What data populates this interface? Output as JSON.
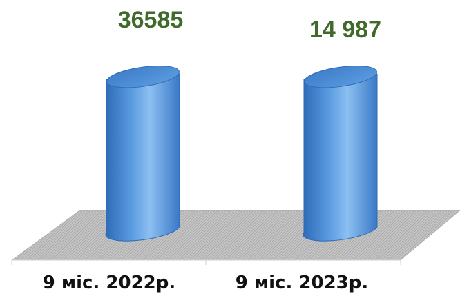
{
  "chart_data": {
    "type": "bar",
    "categories": [
      "9 міс. 2022р.",
      "9 міс. 2023р."
    ],
    "values": [
      36585,
      14987
    ],
    "data_labels": [
      "36585",
      "14 987"
    ],
    "title": "",
    "xlabel": "",
    "ylabel": "",
    "ylim": [
      0,
      40000
    ],
    "grid": false,
    "legend": "none"
  },
  "colors": {
    "bar": "#4a8bd6",
    "bar_dark": "#2f6bb8",
    "bar_light": "#8cc0f2",
    "floor": "#b9b9b9",
    "value_label": "#3f6a2a"
  }
}
